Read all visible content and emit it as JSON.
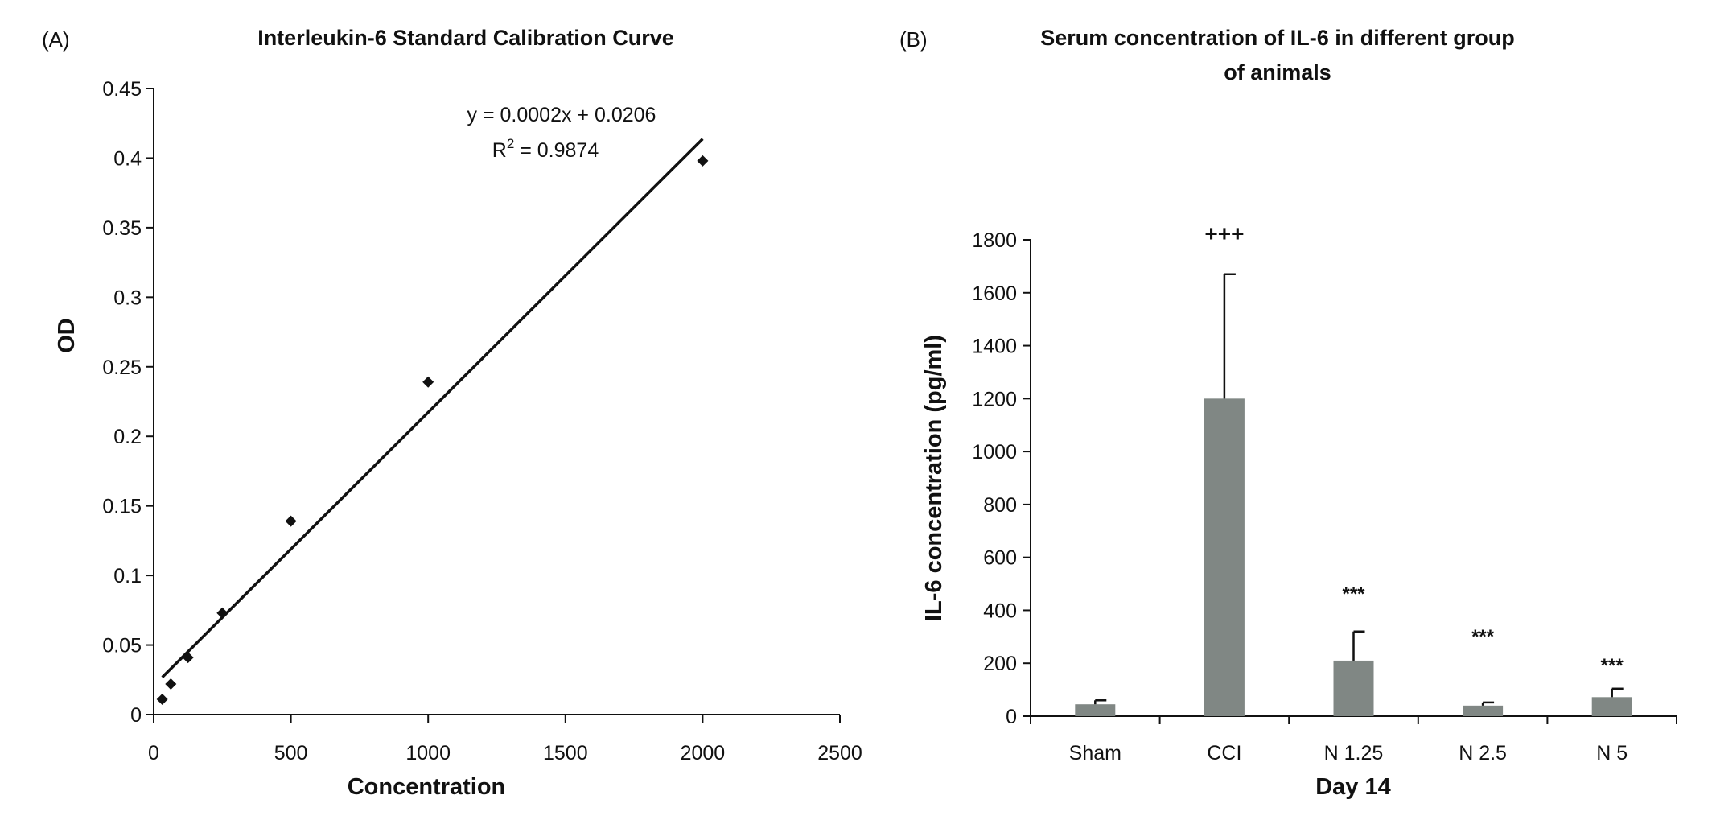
{
  "chart_data": [
    {
      "panel": "(A)",
      "type": "scatter",
      "title": "Interleukin-6 Standard Calibration Curve",
      "xlabel": "Concentration",
      "ylabel": "OD",
      "xlim": [
        0,
        2500
      ],
      "ylim": [
        0,
        0.45
      ],
      "x_ticks": [
        "0",
        "500",
        "1000",
        "1500",
        "2000",
        "2500"
      ],
      "y_ticks": [
        "0",
        "0.05",
        "0.1",
        "0.15",
        "0.2",
        "0.25",
        "0.3",
        "0.35",
        "0.4",
        "0.45"
      ],
      "grid": false,
      "points": [
        {
          "x": 31.25,
          "y": 0.011
        },
        {
          "x": 62.5,
          "y": 0.022
        },
        {
          "x": 125,
          "y": 0.041
        },
        {
          "x": 250,
          "y": 0.073
        },
        {
          "x": 500,
          "y": 0.139
        },
        {
          "x": 1000,
          "y": 0.239
        },
        {
          "x": 2000,
          "y": 0.398
        }
      ],
      "trendline": {
        "equation": "y = 0.0002x + 0.0206",
        "r2_label": "R",
        "r2_exp": "2",
        "r2_value": " = 0.9874",
        "x_from": 31.25,
        "x_to": 2000,
        "y_from": 0.0268,
        "y_to": 0.4138
      }
    },
    {
      "panel": "(B)",
      "type": "bar",
      "title_lines": [
        "Serum concentration of IL-6 in different group",
        "of animals"
      ],
      "xlabel": "Day 14",
      "ylabel": "IL-6 concentration (pg/ml)",
      "ylim": [
        0,
        1800
      ],
      "y_ticks": [
        "0",
        "200",
        "400",
        "600",
        "800",
        "1000",
        "1200",
        "1400",
        "1600",
        "1800"
      ],
      "grid": false,
      "bar_color": "#808784",
      "categories": [
        "Sham",
        "CCI",
        "N 1.25",
        "N 2.5",
        "N 5"
      ],
      "values": [
        45,
        1200,
        210,
        40,
        72
      ],
      "errors": [
        15,
        470,
        110,
        12,
        32
      ],
      "annotations": [
        "",
        "+++",
        "***",
        "***",
        "***"
      ],
      "annotation_y": [
        0,
        1820,
        480,
        320,
        210
      ]
    }
  ]
}
